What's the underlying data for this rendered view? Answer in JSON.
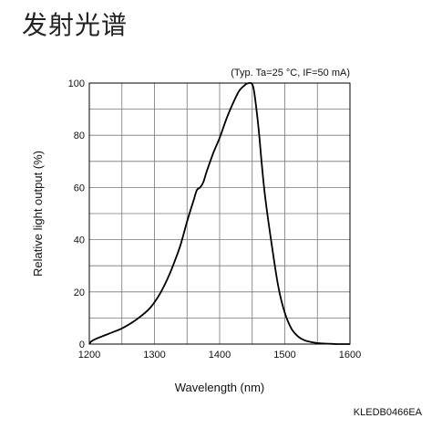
{
  "page": {
    "title": "发射光谱",
    "code": "KLEDB0466EA"
  },
  "chart_data": {
    "type": "line",
    "title": "",
    "annotation": "(Typ. Ta=25 °C, IF=50 mA)",
    "xlabel": "Wavelength (nm)",
    "ylabel": "Relative light output (%)",
    "xlim": [
      1200,
      1600
    ],
    "ylim": [
      0,
      100
    ],
    "x_ticks": [
      1200,
      1300,
      1400,
      1500,
      1600
    ],
    "y_ticks": [
      0,
      20,
      40,
      60,
      80,
      100
    ],
    "x_grid": [
      1200,
      1250,
      1300,
      1350,
      1400,
      1450,
      1500,
      1550,
      1600
    ],
    "y_grid": [
      0,
      10,
      20,
      30,
      40,
      50,
      60,
      70,
      80,
      90,
      100
    ],
    "grid": true,
    "line_color": "#000000",
    "series": [
      {
        "x": [
          1200,
          1203,
          1210,
          1220,
          1230,
          1250,
          1270,
          1290,
          1300,
          1310,
          1320,
          1330,
          1340,
          1350,
          1360,
          1365,
          1370,
          1375,
          1380,
          1390,
          1400,
          1410,
          1420,
          1430,
          1440,
          1445,
          1448,
          1450,
          1452,
          1455,
          1460,
          1465,
          1470,
          1480,
          1490,
          1500,
          1510,
          1520,
          1530,
          1540,
          1550,
          1560,
          1570,
          1580,
          1590,
          1600
        ],
        "y": [
          0,
          1,
          2,
          3,
          4,
          6,
          9,
          13,
          16,
          20,
          25,
          31,
          38,
          47,
          55,
          59,
          60,
          62,
          66,
          73,
          79,
          86,
          92,
          97,
          99.5,
          100,
          100,
          99.5,
          98,
          93,
          82,
          68,
          56,
          38,
          22,
          12,
          6,
          3,
          1.5,
          0.8,
          0.4,
          0.2,
          0.1,
          0,
          0,
          0
        ]
      }
    ]
  }
}
